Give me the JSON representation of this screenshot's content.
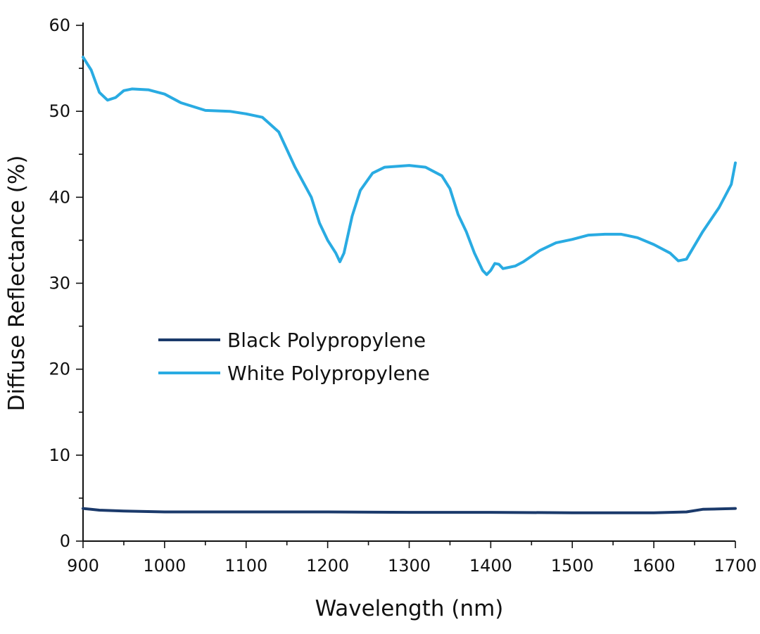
{
  "chart_data": {
    "type": "line",
    "title": "",
    "xlabel": "Wavelength (nm)",
    "ylabel": "Diffuse Reflectance (%)",
    "xlim": [
      900,
      1700
    ],
    "ylim": [
      0,
      60
    ],
    "x_ticks": [
      900,
      1000,
      1100,
      1200,
      1300,
      1400,
      1500,
      1600,
      1700
    ],
    "y_ticks": [
      0,
      10,
      20,
      30,
      40,
      50,
      60
    ],
    "grid": false,
    "legend_position": "center-left",
    "series": [
      {
        "name": "Black Polypropylene",
        "color": "#1b3a6b",
        "points": [
          [
            900,
            3.8
          ],
          [
            920,
            3.6
          ],
          [
            950,
            3.5
          ],
          [
            1000,
            3.4
          ],
          [
            1100,
            3.4
          ],
          [
            1200,
            3.4
          ],
          [
            1300,
            3.35
          ],
          [
            1400,
            3.35
          ],
          [
            1500,
            3.3
          ],
          [
            1600,
            3.3
          ],
          [
            1640,
            3.4
          ],
          [
            1660,
            3.7
          ],
          [
            1700,
            3.8
          ]
        ]
      },
      {
        "name": "White Polypropylene",
        "color": "#29abe2",
        "points": [
          [
            900,
            56.3
          ],
          [
            910,
            54.8
          ],
          [
            920,
            52.2
          ],
          [
            930,
            51.3
          ],
          [
            940,
            51.6
          ],
          [
            950,
            52.4
          ],
          [
            960,
            52.6
          ],
          [
            980,
            52.5
          ],
          [
            1000,
            52.0
          ],
          [
            1020,
            51.0
          ],
          [
            1050,
            50.1
          ],
          [
            1080,
            50.0
          ],
          [
            1100,
            49.7
          ],
          [
            1120,
            49.3
          ],
          [
            1140,
            47.6
          ],
          [
            1160,
            43.5
          ],
          [
            1180,
            40.0
          ],
          [
            1190,
            37.0
          ],
          [
            1200,
            35.0
          ],
          [
            1210,
            33.5
          ],
          [
            1215,
            32.5
          ],
          [
            1220,
            33.5
          ],
          [
            1230,
            37.8
          ],
          [
            1240,
            40.8
          ],
          [
            1255,
            42.8
          ],
          [
            1270,
            43.5
          ],
          [
            1300,
            43.7
          ],
          [
            1320,
            43.5
          ],
          [
            1340,
            42.5
          ],
          [
            1350,
            41.0
          ],
          [
            1360,
            38.0
          ],
          [
            1370,
            36.0
          ],
          [
            1380,
            33.5
          ],
          [
            1390,
            31.5
          ],
          [
            1395,
            31.0
          ],
          [
            1400,
            31.5
          ],
          [
            1405,
            32.3
          ],
          [
            1410,
            32.2
          ],
          [
            1415,
            31.7
          ],
          [
            1420,
            31.8
          ],
          [
            1430,
            32.0
          ],
          [
            1440,
            32.5
          ],
          [
            1460,
            33.8
          ],
          [
            1480,
            34.7
          ],
          [
            1500,
            35.1
          ],
          [
            1520,
            35.6
          ],
          [
            1540,
            35.7
          ],
          [
            1560,
            35.7
          ],
          [
            1580,
            35.3
          ],
          [
            1600,
            34.5
          ],
          [
            1620,
            33.5
          ],
          [
            1630,
            32.6
          ],
          [
            1640,
            32.8
          ],
          [
            1660,
            36.0
          ],
          [
            1680,
            38.8
          ],
          [
            1695,
            41.5
          ],
          [
            1700,
            44.0
          ]
        ]
      }
    ]
  }
}
